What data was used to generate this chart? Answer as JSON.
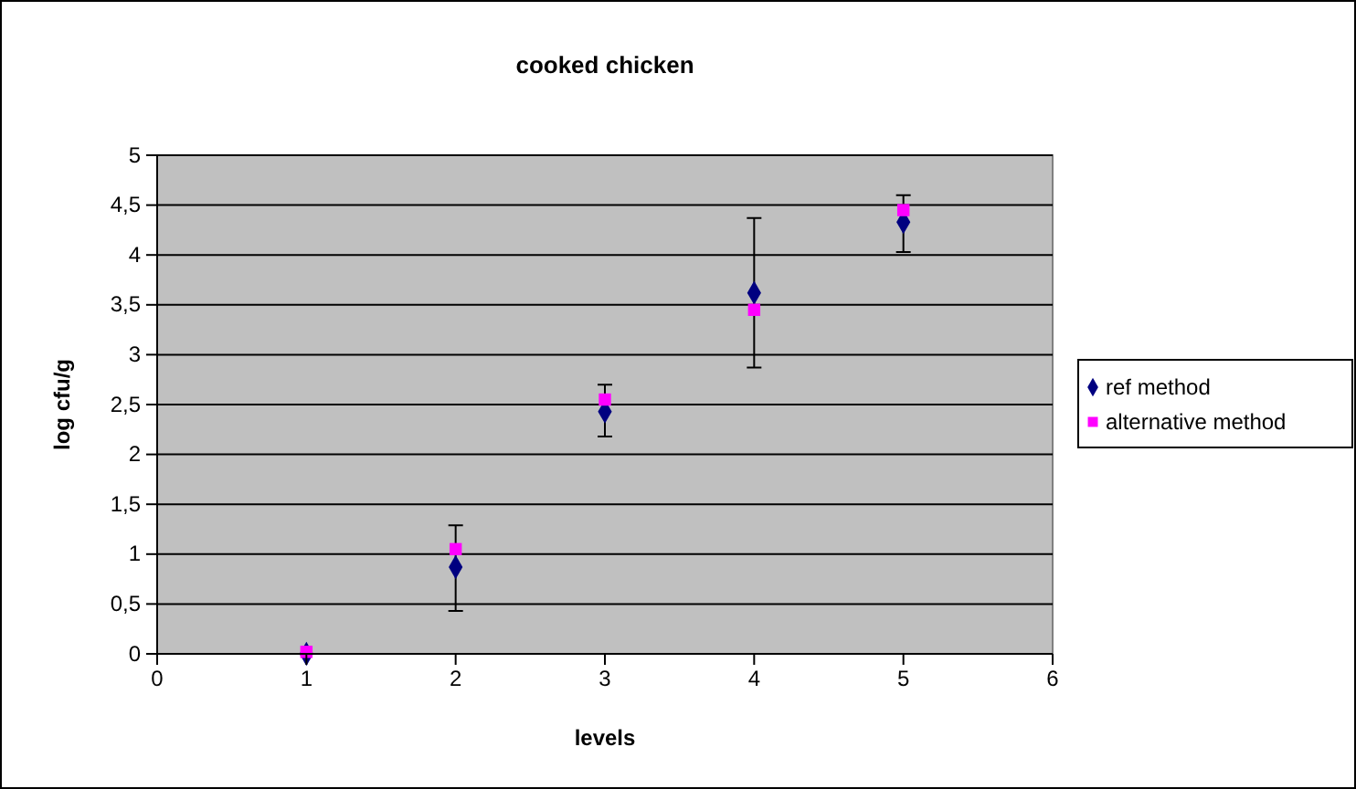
{
  "chart_data": {
    "type": "scatter",
    "title": "cooked chicken",
    "xlabel": "levels",
    "ylabel": "log cfu/g",
    "x": [
      1,
      2,
      3,
      4,
      5
    ],
    "series": [
      {
        "name": "ref method",
        "color": "#000080",
        "marker": "diamond",
        "values": [
          0,
          0.87,
          2.43,
          3.62,
          4.33
        ],
        "errors": [
          null,
          [
            0.43,
            1.29
          ],
          [
            2.18,
            2.7
          ],
          [
            2.87,
            4.37
          ],
          [
            4.03,
            4.6
          ]
        ]
      },
      {
        "name": "alternative method",
        "color": "#ff00ff",
        "marker": "square",
        "values": [
          0.02,
          1.05,
          2.55,
          3.45,
          4.45
        ]
      }
    ],
    "xlim": [
      0,
      6
    ],
    "xticks": [
      0,
      1,
      2,
      3,
      4,
      5,
      6
    ],
    "ylim": [
      0,
      5
    ],
    "yticks": [
      {
        "value": 0,
        "label": "0"
      },
      {
        "value": 0.5,
        "label": "0,5"
      },
      {
        "value": 1,
        "label": "1"
      },
      {
        "value": 1.5,
        "label": "1,5"
      },
      {
        "value": 2,
        "label": "2"
      },
      {
        "value": 2.5,
        "label": "2,5"
      },
      {
        "value": 3,
        "label": "3"
      },
      {
        "value": 3.5,
        "label": "3,5"
      },
      {
        "value": 4,
        "label": "4"
      },
      {
        "value": 4.5,
        "label": "4,5"
      },
      {
        "value": 5,
        "label": "5"
      }
    ],
    "grid": "y",
    "legend": "right"
  }
}
